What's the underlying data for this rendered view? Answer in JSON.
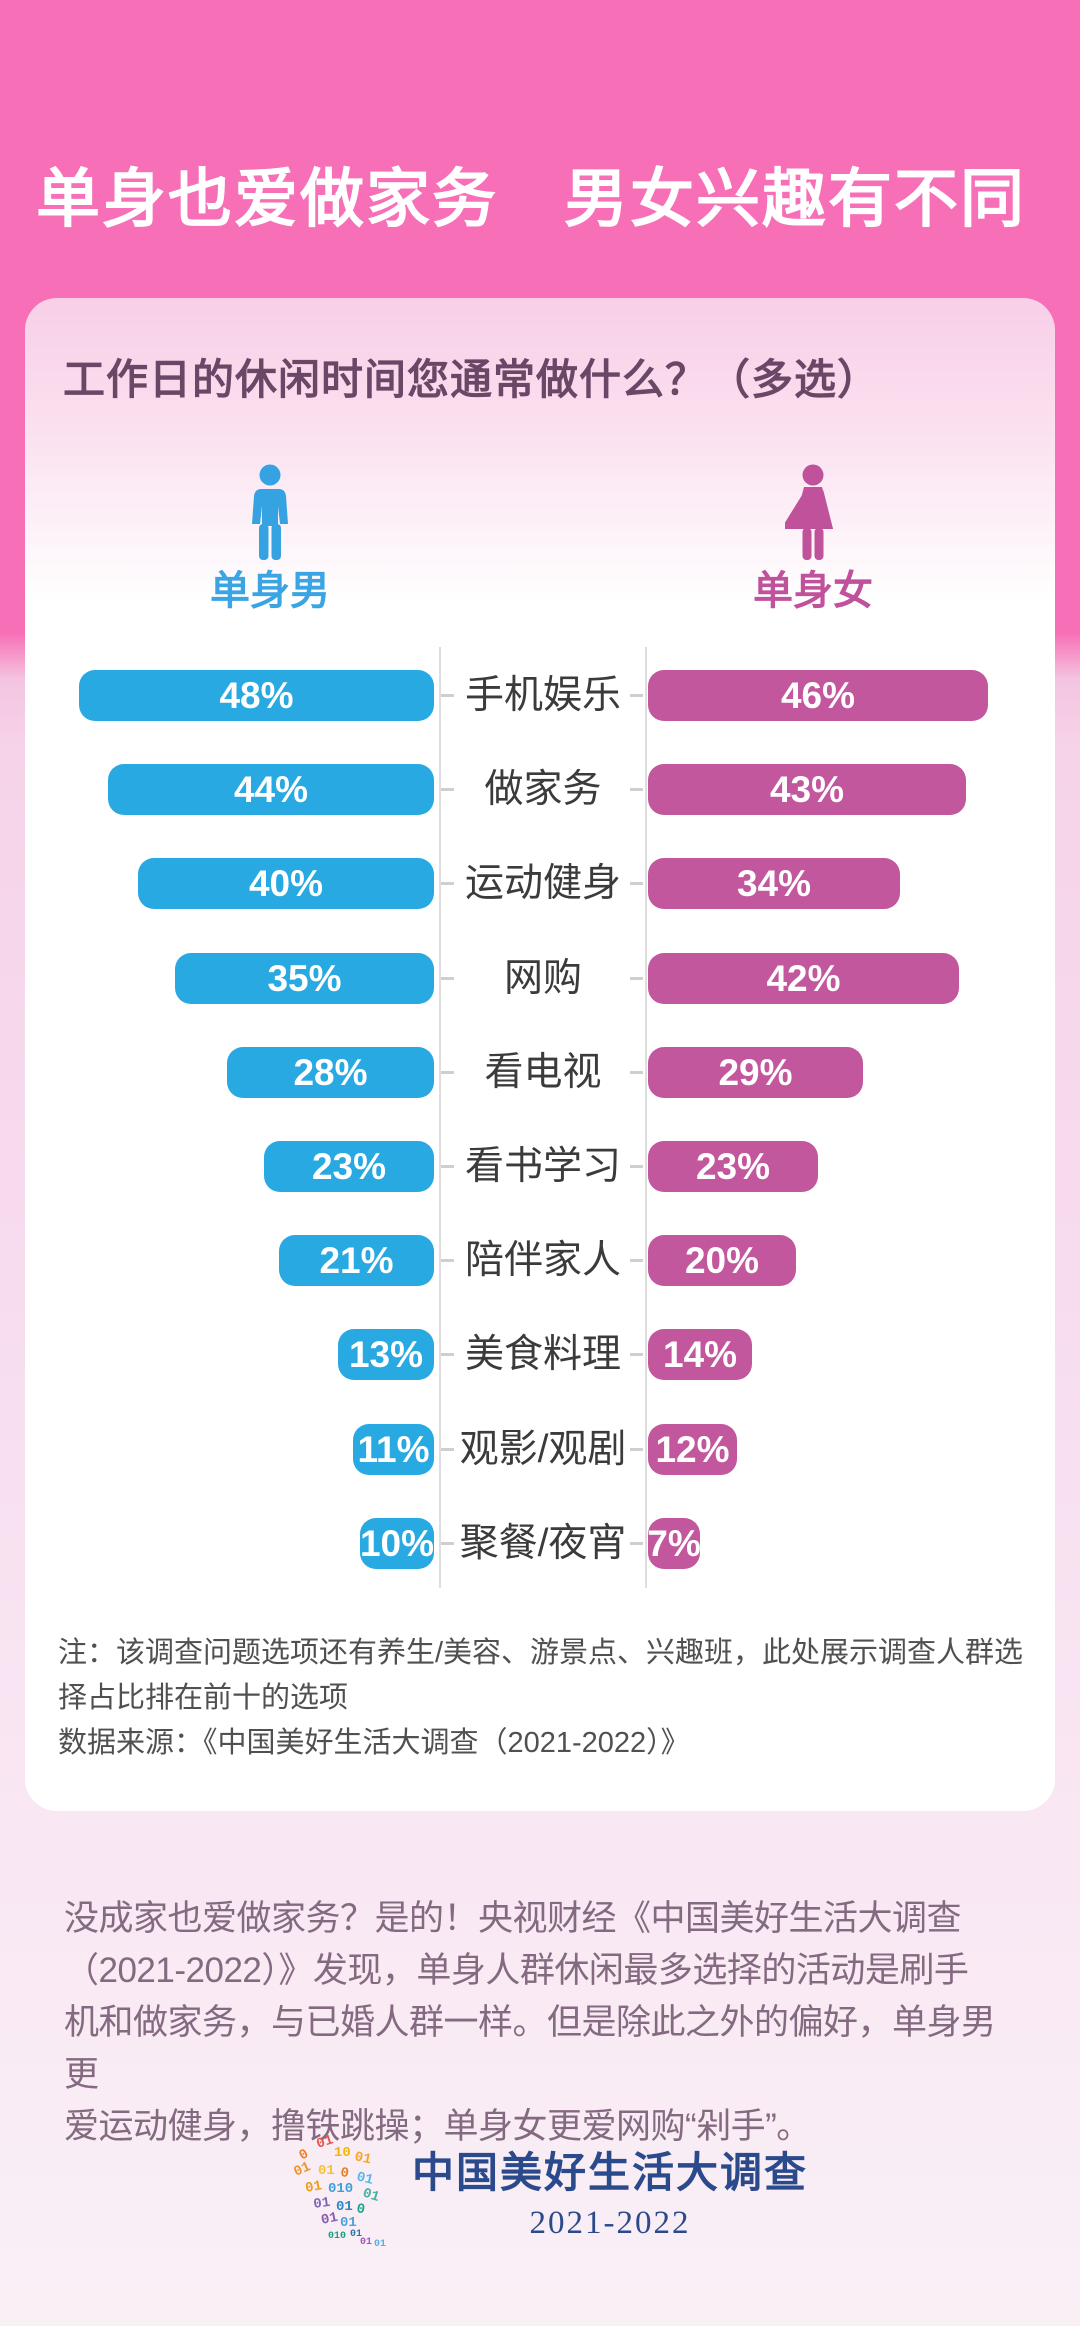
{
  "page_title": "单身也爱做家务　男女兴趣有不同",
  "card": {
    "question": "工作日的休闲时间您通常做什么？（多选）",
    "note": "注：该调查问题选项还有养生/美容、游景点、兴趣班，此处展示调查人群选择占比排在前十的选项\n数据来源：《中国美好生活大调查（2021-2022）》"
  },
  "chart_data": {
    "type": "bar",
    "variant": "diverging_horizontal",
    "title": "工作日的休闲时间您通常做什么？（多选）",
    "unit": "%",
    "categories": [
      "手机娱乐",
      "做家务",
      "运动健身",
      "网购",
      "看电视",
      "看书学习",
      "陪伴家人",
      "美食料理",
      "观影/观剧",
      "聚餐/夜宵"
    ],
    "series": [
      {
        "name": "单身男",
        "gender": "male",
        "color": "#29a9e1",
        "values": [
          48,
          44,
          40,
          35,
          28,
          23,
          21,
          13,
          11,
          10
        ]
      },
      {
        "name": "单身女",
        "gender": "female",
        "color": "#c2579e",
        "values": [
          46,
          43,
          34,
          42,
          29,
          23,
          20,
          14,
          12,
          7
        ]
      }
    ],
    "value_label_format": "{value}%",
    "value_labels_position": "inside-bars",
    "legend_position": "top",
    "axis_lines": true
  },
  "body_text": "没成家也爱做家务？是的！央视财经《中国美好生活大调查\n（2021-2022）》发现，单身人群休闲最多选择的活动是刷手\n机和做家务，与已婚人群一样。但是除此之外的偏好，单身男更\n爱运动健身，撸铁跳操；单身女更爱网购“剁手”。",
  "footer": {
    "logo_title": "中国美好生活大调查",
    "logo_years": "2021-2022"
  },
  "colors": {
    "header_pink": "#f76fb6",
    "male_blue": "#29a9e1",
    "female_magenta": "#c2579e",
    "question_plum": "#6a4766",
    "category_gray": "#3b3b3b",
    "body_mauve": "#846a80",
    "footer_navy": "#2b4a8c"
  }
}
